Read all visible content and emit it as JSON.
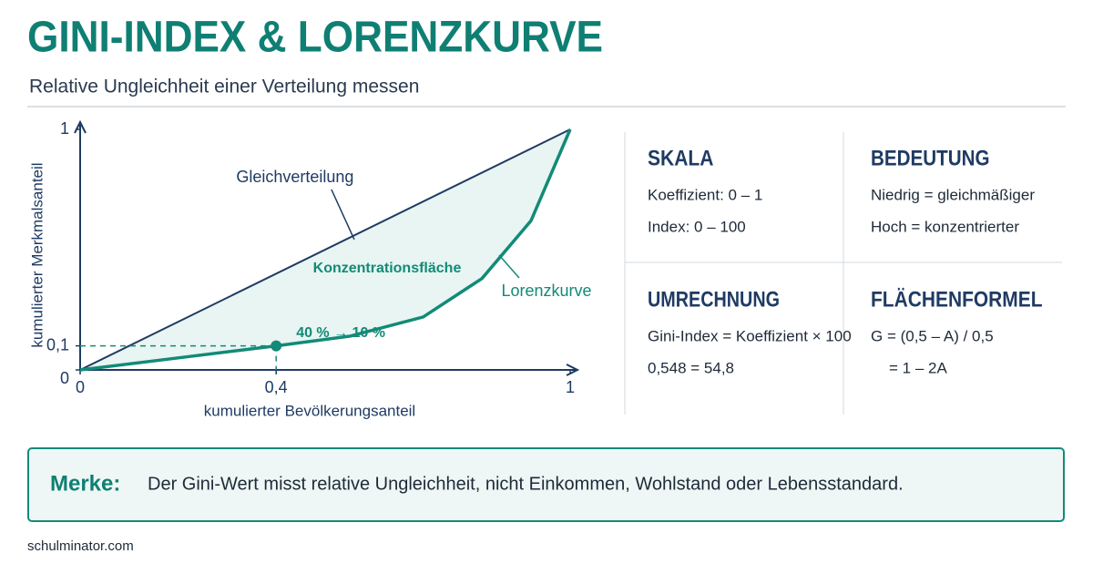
{
  "header": {
    "title": "GINI-INDEX & LORENZKURVE",
    "subtitle": "Relative Ungleichheit einer Verteilung messen"
  },
  "chart_data": {
    "type": "line",
    "xlabel": "kumulierter Bevölkerungsanteil",
    "ylabel": "kumulierter Merkmalsanteil",
    "xlim": [
      0,
      1
    ],
    "ylim": [
      0,
      1
    ],
    "xticks": [
      0,
      {
        "value": 0.4,
        "label": "0,4"
      },
      1
    ],
    "yticks": [
      0,
      {
        "value": 0.1,
        "label": "0,1"
      },
      1
    ],
    "series": [
      {
        "name": "Gleichverteilung",
        "color": "#1f3b63",
        "x": [
          0,
          1
        ],
        "values": [
          0,
          1
        ]
      },
      {
        "name": "Lorenzkurve",
        "color": "#138a78",
        "x": [
          0,
          0.2,
          0.4,
          0.55,
          0.7,
          0.82,
          0.92,
          1
        ],
        "values": [
          0,
          0.05,
          0.1,
          0.14,
          0.22,
          0.38,
          0.62,
          1
        ]
      }
    ],
    "area_label": "Konzentrationsfläche",
    "annotation": "40 % → 10 %"
  },
  "panels": [
    {
      "heading": "SKALA",
      "lines": [
        "Koeffizient: 0 – 1",
        "Index: 0 – 100"
      ]
    },
    {
      "heading": "BEDEUTUNG",
      "lines": [
        "Niedrig = gleichmäßiger",
        "Hoch = konzentrierter"
      ]
    },
    {
      "heading": "UMRECHNUNG",
      "lines": [
        "Gini-Index = Koeffizient × 100",
        "0,548 = 54,8"
      ]
    },
    {
      "heading": "FLÄCHENFORMEL",
      "lines": [
        "G = (0,5 – A) / 0,5",
        "= 1 – 2A"
      ]
    }
  ],
  "note": {
    "label": "Merke:",
    "text": "Der Gini-Wert misst relative Ungleichheit, nicht Einkommen, Wohlstand oder Lebensstandard."
  },
  "footer": "schulminator.com"
}
